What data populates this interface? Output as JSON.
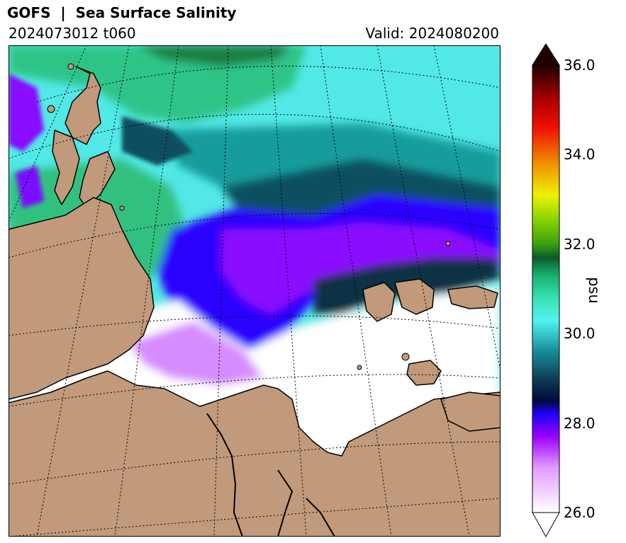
{
  "title": "GOFS  |  Sea Surface Salinity",
  "subtitle_left": "2024073012 t060",
  "subtitle_right": "Valid: 2024080200",
  "colorbar": {
    "unit": "psu",
    "range": [
      26.0,
      36.0
    ],
    "extend": "both",
    "ticks": [
      "26.0",
      "28.0",
      "30.0",
      "32.0",
      "34.0",
      "36.0"
    ],
    "stops": [
      {
        "v": 26.0,
        "c": "#ffffff"
      },
      {
        "v": 27.0,
        "c": "#e29bff"
      },
      {
        "v": 27.7,
        "c": "#9a00ff"
      },
      {
        "v": 28.2,
        "c": "#2000ff"
      },
      {
        "v": 28.5,
        "c": "#000a3a"
      },
      {
        "v": 29.0,
        "c": "#0e3f55"
      },
      {
        "v": 29.6,
        "c": "#168c9a"
      },
      {
        "v": 30.3,
        "c": "#52f3f0"
      },
      {
        "v": 30.8,
        "c": "#38e0b0"
      },
      {
        "v": 31.3,
        "c": "#18b070"
      },
      {
        "v": 31.7,
        "c": "#0c5a2a"
      },
      {
        "v": 32.0,
        "c": "#3aa010"
      },
      {
        "v": 32.6,
        "c": "#90d800"
      },
      {
        "v": 33.1,
        "c": "#f0f000"
      },
      {
        "v": 33.8,
        "c": "#f09000"
      },
      {
        "v": 34.6,
        "c": "#f01000"
      },
      {
        "v": 35.2,
        "c": "#b00000"
      },
      {
        "v": 36.0,
        "c": "#200000"
      }
    ]
  },
  "colors": {
    "land": "#c19a7b",
    "coast": "#000000",
    "ice_free_low": "#ffffff",
    "graticule": "#000000"
  },
  "map": {
    "region": "Arctic Ocean - Siberian shelf seas",
    "projection": "polar stereographic",
    "graticule": "dotted"
  }
}
